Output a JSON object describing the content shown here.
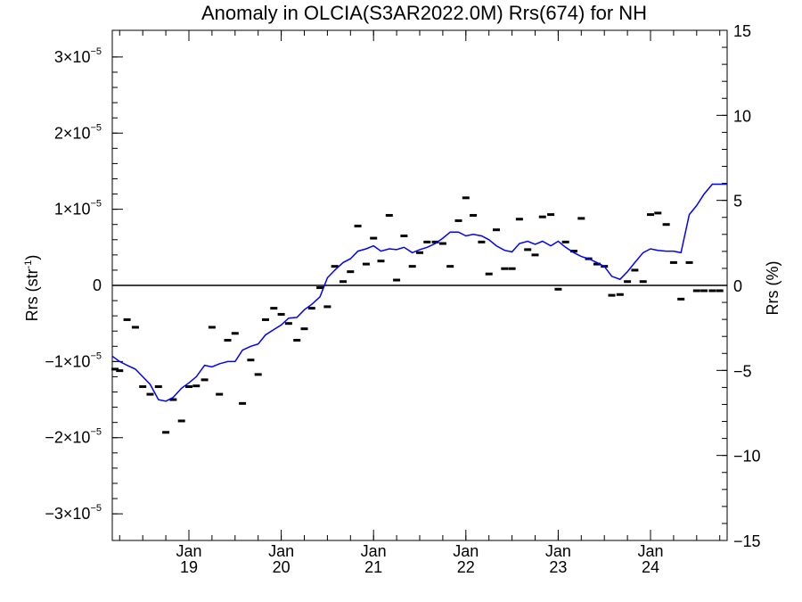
{
  "chart_data": {
    "type": "line",
    "title": "Anomaly in OLCIA(S3AR2022.0M) Rrs(674) for NH",
    "ylabel_left": "Rrs (str",
    "ylabel_left_sup": "-1",
    "ylabel_left_end": ")",
    "ylabel_right": "Rrs (%)",
    "xlim": [
      2018.17,
      2024.83
    ],
    "ylim_left": [
      -3.35e-05,
      3.35e-05
    ],
    "ylim_right": [
      -15,
      15
    ],
    "left_ticks": [
      {
        "value": 3e-05,
        "base": "3×10",
        "exp": "−5"
      },
      {
        "value": 2e-05,
        "base": "2×10",
        "exp": "−5"
      },
      {
        "value": 1e-05,
        "base": "1×10",
        "exp": "−5"
      },
      {
        "value": 0,
        "base": "0",
        "exp": ""
      },
      {
        "value": -1e-05,
        "base": "−1×10",
        "exp": "−5"
      },
      {
        "value": -2e-05,
        "base": "−2×10",
        "exp": "−5"
      },
      {
        "value": -3e-05,
        "base": "−3×10",
        "exp": "−5"
      }
    ],
    "right_ticks": [
      {
        "value": 15,
        "label": "15"
      },
      {
        "value": 10,
        "label": "10"
      },
      {
        "value": 5,
        "label": "5"
      },
      {
        "value": 0,
        "label": "0"
      },
      {
        "value": -5,
        "label": "−5"
      },
      {
        "value": -10,
        "label": "−10"
      },
      {
        "value": -15,
        "label": "−15"
      }
    ],
    "x_ticks": [
      {
        "value": 2019.0,
        "month": "Jan",
        "year": "19"
      },
      {
        "value": 2020.0,
        "month": "Jan",
        "year": "20"
      },
      {
        "value": 2021.0,
        "month": "Jan",
        "year": "21"
      },
      {
        "value": 2022.0,
        "month": "Jan",
        "year": "22"
      },
      {
        "value": 2023.0,
        "month": "Jan",
        "year": "23"
      },
      {
        "value": 2024.0,
        "month": "Jan",
        "year": "24"
      }
    ],
    "grid": false,
    "series": [
      {
        "type": "line",
        "color": "#0000ff",
        "x": [
          2018.17,
          2018.25,
          2018.33,
          2018.42,
          2018.5,
          2018.58,
          2018.67,
          2018.75,
          2018.83,
          2018.92,
          2019.0,
          2019.08,
          2019.17,
          2019.25,
          2019.33,
          2019.42,
          2019.5,
          2019.58,
          2019.67,
          2019.75,
          2019.83,
          2019.92,
          2020.0,
          2020.08,
          2020.17,
          2020.25,
          2020.33,
          2020.42,
          2020.5,
          2020.58,
          2020.67,
          2020.75,
          2020.83,
          2020.92,
          2021.0,
          2021.08,
          2021.17,
          2021.25,
          2021.33,
          2021.42,
          2021.5,
          2021.58,
          2021.67,
          2021.75,
          2021.83,
          2021.92,
          2022.0,
          2022.08,
          2022.17,
          2022.25,
          2022.33,
          2022.42,
          2022.5,
          2022.58,
          2022.67,
          2022.75,
          2022.83,
          2022.92,
          2023.0,
          2023.08,
          2023.17,
          2023.25,
          2023.33,
          2023.42,
          2023.5,
          2023.58,
          2023.67,
          2023.75,
          2023.83,
          2023.92,
          2024.0,
          2024.08,
          2024.17,
          2024.25,
          2024.33,
          2024.42,
          2024.5,
          2024.58,
          2024.67,
          2024.75,
          2024.83
        ],
        "y": [
          -9.3e-06,
          -1e-05,
          -1.05e-05,
          -1.1e-05,
          -1.2e-05,
          -1.3e-05,
          -1.5e-05,
          -1.52e-05,
          -1.47e-05,
          -1.35e-05,
          -1.28e-05,
          -1.2e-05,
          -1.05e-05,
          -1.07e-05,
          -1.03e-05,
          -1e-05,
          -1e-05,
          -8.5e-06,
          -8e-06,
          -7.7e-06,
          -6.5e-06,
          -5.8e-06,
          -5.2e-06,
          -4.3e-06,
          -4.2e-06,
          -3.2e-06,
          -2.5e-06,
          -1.5e-06,
          1e-06,
          2e-06,
          3e-06,
          3.5e-06,
          4.5e-06,
          4.8e-06,
          5.2e-06,
          4.5e-06,
          4.8e-06,
          4.7e-06,
          5e-06,
          4.3e-06,
          4.7e-06,
          5e-06,
          5.5e-06,
          6.2e-06,
          7e-06,
          7e-06,
          6.5e-06,
          6.7e-06,
          6.5e-06,
          6e-06,
          5.2e-06,
          4.6e-06,
          4.4e-06,
          5.5e-06,
          5.8e-06,
          5.4e-06,
          5.8e-06,
          5.2e-06,
          5.8e-06,
          5e-06,
          4.3e-06,
          3.8e-06,
          3.5e-06,
          3e-06,
          2.5e-06,
          1.2e-06,
          8e-07,
          1.8e-06,
          3e-06,
          4.3e-06,
          4.8e-06,
          4.6e-06,
          4.5e-06,
          4.5e-06,
          4.3e-06,
          9.3e-06,
          1.05e-05,
          1.2e-05,
          1.33e-05,
          1.33e-05,
          1.33e-05
        ]
      },
      {
        "type": "scatter",
        "marker": "dash",
        "color": "#000000",
        "x": [
          2018.2,
          2018.25,
          2018.33,
          2018.42,
          2018.5,
          2018.58,
          2018.67,
          2018.75,
          2018.83,
          2018.92,
          2019.0,
          2019.08,
          2019.17,
          2019.25,
          2019.33,
          2019.42,
          2019.5,
          2019.58,
          2019.67,
          2019.75,
          2019.83,
          2019.92,
          2020.0,
          2020.08,
          2020.17,
          2020.25,
          2020.33,
          2020.42,
          2020.5,
          2020.58,
          2020.67,
          2020.75,
          2020.83,
          2020.92,
          2021.0,
          2021.08,
          2021.17,
          2021.25,
          2021.33,
          2021.42,
          2021.5,
          2021.58,
          2021.67,
          2021.75,
          2021.83,
          2021.92,
          2022.0,
          2022.08,
          2022.17,
          2022.25,
          2022.33,
          2022.42,
          2022.5,
          2022.58,
          2022.67,
          2022.75,
          2022.83,
          2022.92,
          2023.0,
          2023.08,
          2023.17,
          2023.25,
          2023.33,
          2023.42,
          2023.5,
          2023.58,
          2023.67,
          2023.75,
          2023.83,
          2023.92,
          2024.0,
          2024.08,
          2024.17,
          2024.25,
          2024.33,
          2024.42,
          2024.5,
          2024.58,
          2024.67,
          2024.75
        ],
        "y": [
          -1.1e-05,
          -1.12e-05,
          -4.5e-06,
          -5.5e-06,
          -1.33e-05,
          -1.43e-05,
          -1.33e-05,
          -1.93e-05,
          -1.5e-05,
          -1.78e-05,
          -1.33e-05,
          -1.32e-05,
          -1.24e-05,
          -5.5e-06,
          -1.43e-05,
          -7.2e-06,
          -6.3e-06,
          -1.55e-05,
          -9.8e-06,
          -1.17e-05,
          -4.5e-06,
          -3e-06,
          -3.8e-06,
          -5e-06,
          -7.2e-06,
          -5.7e-06,
          -3e-06,
          -3e-07,
          -2.8e-06,
          2.5e-06,
          5e-07,
          1.8e-06,
          7.8e-06,
          2.8e-06,
          6.2e-06,
          3.2e-06,
          9.2e-06,
          7e-07,
          6.5e-06,
          2.5e-06,
          4.3e-06,
          5.7e-06,
          5.7e-06,
          5.5e-06,
          2.5e-06,
          8.5e-06,
          1.15e-05,
          9.2e-06,
          5.7e-06,
          1.5e-06,
          7.3e-06,
          2.2e-06,
          2.2e-06,
          8.7e-06,
          4.7e-06,
          4e-06,
          9e-06,
          9.3e-06,
          -5e-07,
          5.7e-06,
          4.5e-06,
          8.8e-06,
          3.5e-06,
          2.8e-06,
          2.5e-06,
          -1.3e-06,
          -1.2e-06,
          5e-07,
          2e-06,
          5e-07,
          9.3e-06,
          9.5e-06,
          8e-06,
          3e-06,
          -1.8e-06,
          3e-06,
          -7e-07,
          -7e-07,
          -7e-07,
          -7e-07
        ]
      }
    ]
  }
}
